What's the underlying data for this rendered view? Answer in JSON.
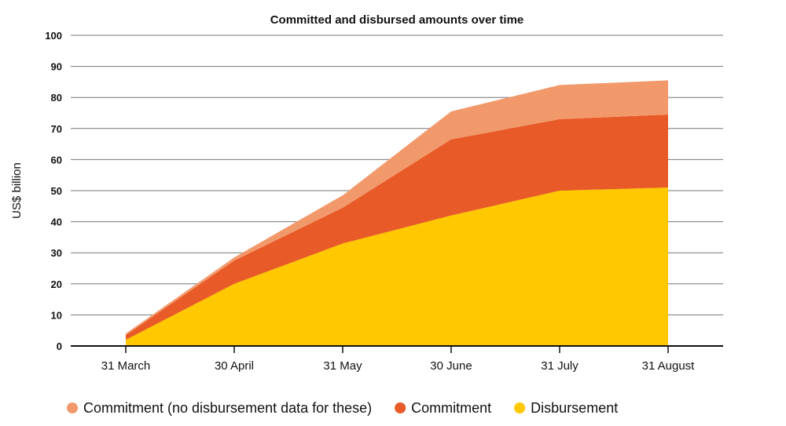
{
  "chart_data": {
    "type": "area",
    "stacked": true,
    "title": "Committed and disbursed amounts over time",
    "xlabel": "",
    "ylabel": "US$ billion",
    "categories": [
      "31 March",
      "30 April",
      "31 May",
      "30 June",
      "31 July",
      "31 August"
    ],
    "ylim": [
      0,
      100
    ],
    "yticks": [
      "0",
      "10",
      "20",
      "30",
      "40",
      "50",
      "60",
      "70",
      "80",
      "90",
      "100"
    ],
    "grid": true,
    "legend_position": "bottom",
    "series": [
      {
        "name": "Disbursement",
        "color": "#FFC800",
        "values": [
          2,
          20,
          33,
          42,
          50,
          51
        ]
      },
      {
        "name": "Commitment",
        "color": "#E85A27",
        "values": [
          1.5,
          7.5,
          11.5,
          24.5,
          23,
          23.5
        ]
      },
      {
        "name": "Commitment (no disbursement data for these)",
        "color": "#F2996C",
        "values": [
          0.5,
          1,
          4,
          9,
          11,
          11
        ]
      }
    ],
    "legend_order": [
      2,
      1,
      0
    ]
  }
}
